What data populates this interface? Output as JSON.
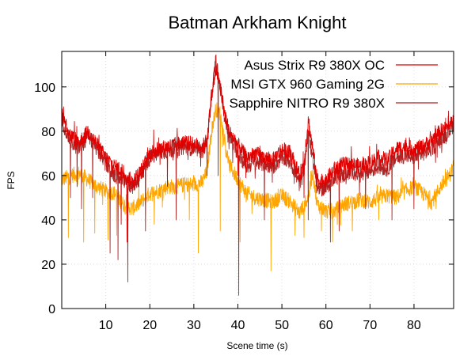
{
  "chart_data": {
    "type": "line",
    "title": "Batman Arkham Knight",
    "xlabel": "Scene time (s)",
    "ylabel": "FPS",
    "xlim": [
      0,
      89
    ],
    "ylim": [
      0,
      116
    ],
    "xticks": [
      10,
      20,
      30,
      40,
      50,
      60,
      70,
      80
    ],
    "yticks": [
      0,
      20,
      40,
      60,
      80,
      100
    ],
    "grid": true,
    "legend_position": "top-right",
    "series": [
      {
        "name": "Asus Strix R9 380X OC",
        "color": "#e00000",
        "x": [
          0,
          2,
          4,
          6,
          8,
          10,
          12,
          14,
          16,
          18,
          20,
          22,
          24,
          26,
          28,
          30,
          32,
          33,
          34,
          35,
          36,
          37,
          38,
          40,
          42,
          44,
          46,
          48,
          50,
          52,
          54,
          55,
          56,
          57,
          58,
          60,
          62,
          64,
          66,
          68,
          70,
          72,
          74,
          76,
          78,
          80,
          82,
          84,
          86,
          88,
          89
        ],
        "y": [
          88,
          78,
          75,
          80,
          74,
          68,
          64,
          62,
          57,
          62,
          70,
          72,
          73,
          74,
          75,
          74,
          73,
          76,
          95,
          108,
          100,
          88,
          80,
          74,
          68,
          70,
          68,
          67,
          72,
          70,
          60,
          66,
          85,
          72,
          58,
          58,
          63,
          65,
          65,
          64,
          66,
          68,
          67,
          72,
          73,
          72,
          73,
          76,
          80,
          82,
          85
        ],
        "dips": [
          [
            3.5,
            55
          ],
          [
            13.5,
            38
          ],
          [
            14.8,
            30
          ],
          [
            24,
            55
          ],
          [
            33,
            60
          ],
          [
            40,
            60
          ],
          [
            55,
            50
          ],
          [
            60,
            55
          ]
        ]
      },
      {
        "name": "MSI GTX 960 Gaming 2G",
        "color": "#ffa500",
        "x": [
          0,
          2,
          4,
          6,
          8,
          10,
          12,
          14,
          16,
          18,
          20,
          22,
          24,
          26,
          28,
          30,
          32,
          33,
          34,
          35,
          36,
          37,
          38,
          40,
          42,
          44,
          46,
          48,
          50,
          52,
          54,
          56,
          57,
          58,
          60,
          62,
          64,
          66,
          68,
          70,
          72,
          74,
          76,
          78,
          80,
          82,
          84,
          86,
          88,
          89
        ],
        "y": [
          58,
          60,
          61,
          58,
          55,
          53,
          52,
          47,
          45,
          48,
          52,
          53,
          55,
          55,
          56,
          56,
          57,
          62,
          80,
          90,
          88,
          75,
          65,
          58,
          52,
          50,
          49,
          48,
          51,
          48,
          43,
          50,
          62,
          47,
          44,
          44,
          47,
          48,
          49,
          48,
          50,
          51,
          50,
          53,
          55,
          52,
          48,
          55,
          60,
          64
        ],
        "dips": [
          [
            1.5,
            32
          ],
          [
            5,
            30
          ],
          [
            7.5,
            34
          ],
          [
            10.5,
            31
          ],
          [
            12.5,
            33
          ],
          [
            15,
            29
          ],
          [
            21,
            38
          ],
          [
            29,
            40
          ],
          [
            31,
            25
          ],
          [
            36,
            35
          ],
          [
            40.5,
            30
          ],
          [
            47.5,
            17
          ],
          [
            53,
            33
          ],
          [
            55,
            32
          ],
          [
            59,
            35
          ],
          [
            61.5,
            30
          ],
          [
            66,
            35
          ],
          [
            72,
            40
          ],
          [
            85,
            45
          ]
        ]
      },
      {
        "name": "Sapphire NITRO R9 380X",
        "color": "#b22222",
        "x": [
          0,
          2,
          4,
          6,
          8,
          10,
          12,
          14,
          16,
          18,
          20,
          22,
          24,
          26,
          28,
          30,
          32,
          33,
          34,
          35,
          36,
          37,
          38,
          40,
          42,
          44,
          46,
          48,
          50,
          52,
          54,
          55,
          56,
          57,
          58,
          60,
          62,
          64,
          66,
          68,
          70,
          72,
          74,
          76,
          78,
          80,
          82,
          84,
          86,
          88,
          89
        ],
        "y": [
          85,
          75,
          72,
          78,
          72,
          65,
          60,
          58,
          55,
          60,
          68,
          70,
          71,
          72,
          73,
          72,
          71,
          75,
          96,
          112,
          100,
          86,
          78,
          70,
          64,
          66,
          65,
          64,
          68,
          66,
          56,
          62,
          80,
          68,
          54,
          54,
          60,
          60,
          62,
          60,
          62,
          64,
          63,
          68,
          69,
          68,
          70,
          72,
          76,
          80,
          83
        ],
        "dips": [
          [
            2,
            50
          ],
          [
            4.5,
            45
          ],
          [
            7,
            50
          ],
          [
            11,
            25
          ],
          [
            12.8,
            22
          ],
          [
            15,
            12
          ],
          [
            19,
            35
          ],
          [
            26,
            40
          ],
          [
            35.5,
            60
          ],
          [
            40.2,
            6
          ],
          [
            46,
            40
          ],
          [
            56,
            40
          ],
          [
            61,
            30
          ],
          [
            63,
            35
          ],
          [
            69,
            45
          ],
          [
            75,
            40
          ],
          [
            80,
            45
          ]
        ]
      }
    ]
  }
}
